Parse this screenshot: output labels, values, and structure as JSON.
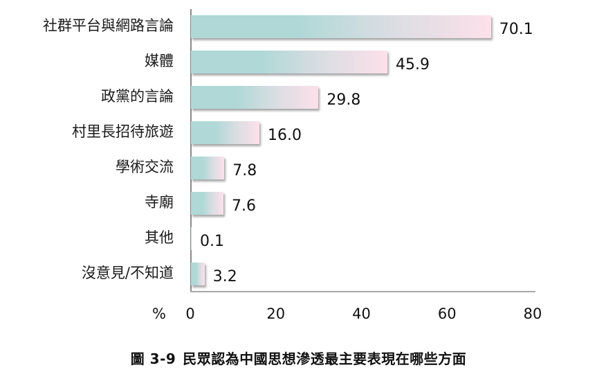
{
  "chart_data": {
    "type": "bar",
    "orientation": "horizontal",
    "title": "圖 3-9 民眾認為中國思想滲透最主要表現在哪些方面",
    "xlabel": "%",
    "ylabel": "",
    "xlim": [
      0,
      80
    ],
    "xticks": [
      0,
      20,
      40,
      60,
      80
    ],
    "grid": false,
    "legend": null,
    "categories": [
      "社群平台與網路言論",
      "媒體",
      "政黨的言論",
      "村里長招待旅遊",
      "學術交流",
      "寺廟",
      "其他",
      "沒意見/不知道"
    ],
    "values": [
      70.1,
      45.9,
      29.8,
      16.0,
      7.8,
      7.6,
      0.1,
      3.2
    ],
    "value_labels": [
      "70.1",
      "45.9",
      "29.8",
      "16.0",
      "7.8",
      "7.6",
      "0.1",
      "3.2"
    ],
    "colors": {
      "gradient_start": "#afd8d7",
      "gradient_mid": "#d8dde2",
      "gradient_end": "#fde0ea",
      "axis": "#a8a8a8"
    }
  },
  "axis": {
    "unit": "%",
    "ticks": [
      "0",
      "20",
      "40",
      "60",
      "80"
    ]
  },
  "caption": {
    "figure_number": "圖 3-9",
    "text": "民眾認為中國思想滲透最主要表現在哪些方面"
  }
}
